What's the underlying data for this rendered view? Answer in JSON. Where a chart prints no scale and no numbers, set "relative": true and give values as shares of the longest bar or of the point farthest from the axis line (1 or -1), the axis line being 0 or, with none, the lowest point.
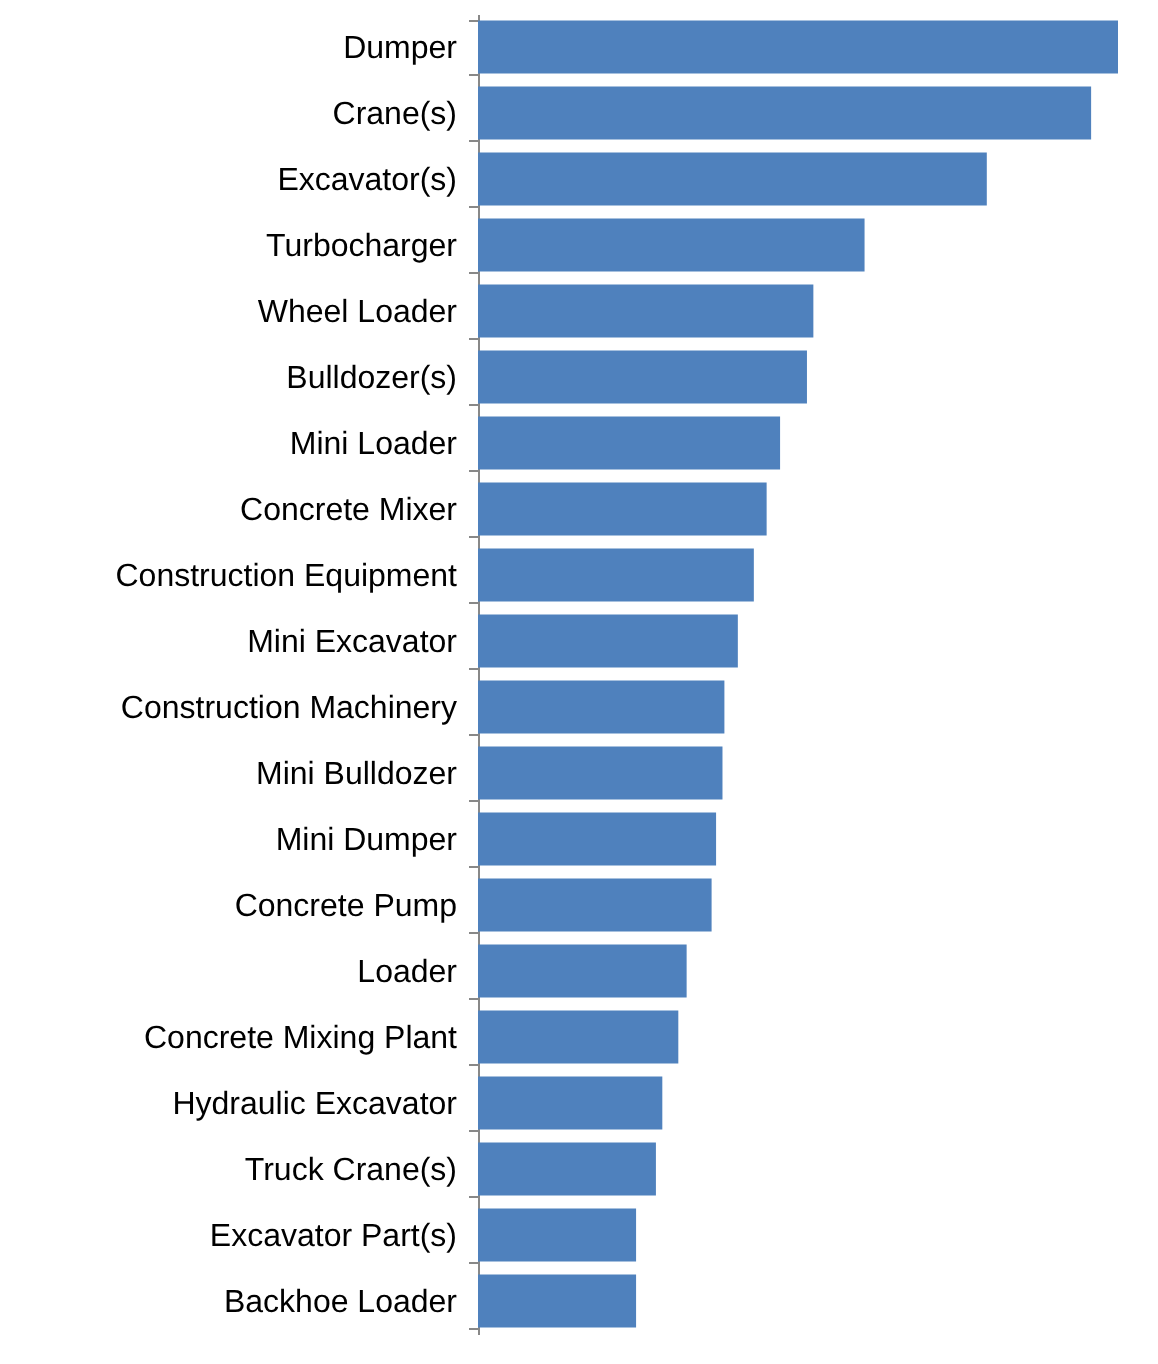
{
  "chart_data": {
    "type": "bar",
    "orientation": "horizontal",
    "relative": true,
    "categories": [
      "Dumper",
      "Crane(s)",
      "Excavator(s)",
      "Turbocharger",
      "Wheel Loader",
      "Bulldozer(s)",
      "Mini Loader",
      "Concrete Mixer",
      "Construction Equipment",
      "Mini Excavator",
      "Construction Machinery",
      "Mini Bulldozer",
      "Mini Dumper",
      "Concrete Pump",
      "Loader",
      "Concrete Mixing Plant",
      "Hydraulic Excavator",
      "Truck Crane(s)",
      "Excavator Part(s)",
      "Backhoe Loader"
    ],
    "values": [
      1,
      0.958,
      0.795,
      0.604,
      0.524,
      0.514,
      0.472,
      0.451,
      0.431,
      0.406,
      0.385,
      0.382,
      0.372,
      0.365,
      0.326,
      0.313,
      0.288,
      0.278,
      0.247,
      0.247
    ],
    "color": "#4f81bd"
  }
}
